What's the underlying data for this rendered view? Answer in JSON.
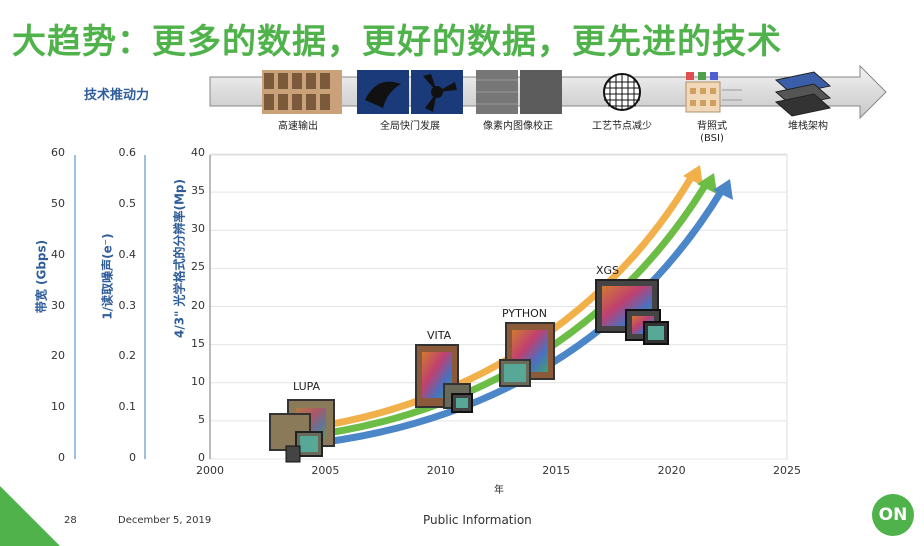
{
  "title": "大趋势：更多的数据，更好的数据，更先进的技术",
  "drivers_label": "技术推动力",
  "tech_items": [
    {
      "label": "高速输出"
    },
    {
      "label": "全局快门发展"
    },
    {
      "label": "像素内图像校正"
    },
    {
      "label": "工艺节点减少"
    },
    {
      "label": "背照式",
      "sub": "(BSI)"
    },
    {
      "label": "堆栈架构"
    }
  ],
  "axes": {
    "bandwidth": {
      "label": "带宽 (Gbps)",
      "ticks": [
        "60",
        "50",
        "40",
        "30",
        "20",
        "10",
        "0"
      ]
    },
    "noise": {
      "label": "1/读取噪声(e⁻)",
      "ticks": [
        "0.6",
        "0.5",
        "0.4",
        "0.3",
        "0.2",
        "0.1",
        "0"
      ]
    },
    "resolution": {
      "label": "4/3\" 光学格式的分辨率(Mp)",
      "ticks": [
        "40",
        "35",
        "30",
        "25",
        "20",
        "15",
        "10",
        "5",
        "0"
      ]
    },
    "x": {
      "label": "年",
      "ticks": [
        "2000",
        "2005",
        "2010",
        "2015",
        "2020",
        "2025"
      ]
    }
  },
  "chip_labels": [
    "LUPA",
    "VITA",
    "PYTHON",
    "XGS"
  ],
  "colors": {
    "title": "#4fb24a",
    "axis": "#2f5d9a",
    "orange": "#f2b04a",
    "green": "#6cbd45",
    "blue": "#4a86c8"
  },
  "footer": {
    "page": "28",
    "date": "December 5, 2019",
    "classification": "Public Information",
    "logo": "ON"
  }
}
